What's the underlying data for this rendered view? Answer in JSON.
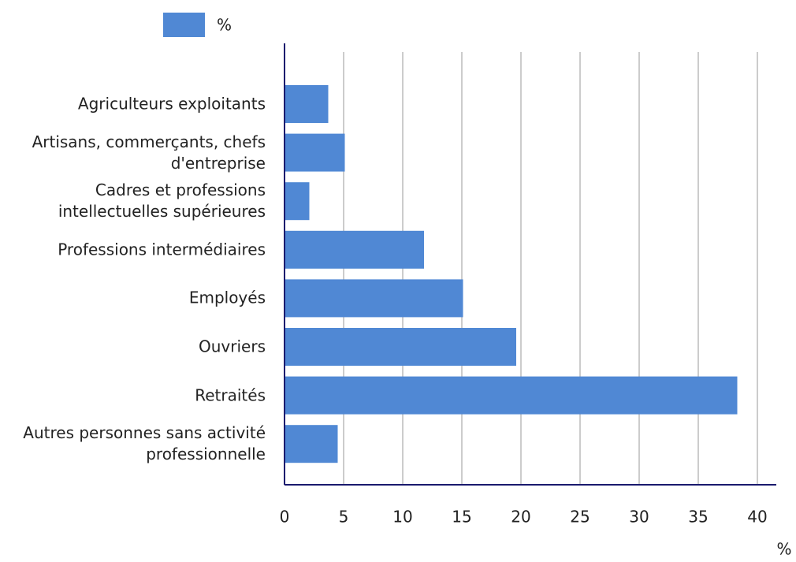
{
  "chart_data": {
    "type": "bar",
    "orientation": "horizontal",
    "categories": [
      "Agriculteurs exploitants",
      "Artisans, commerçants, chefs d'entreprise",
      "Cadres et professions intellectuelles supérieures",
      "Professions intermédiaires",
      "Employés",
      "Ouvriers",
      "Retraités",
      "Autres personnes sans activité professionnelle"
    ],
    "series": [
      {
        "name": "%",
        "color": "#5088d4",
        "values": [
          3.7,
          5.1,
          2.1,
          11.8,
          15.1,
          19.6,
          38.3,
          4.5
        ]
      }
    ],
    "x_label": "%",
    "xlim": [
      0,
      41.6
    ],
    "xticks": [
      0,
      5,
      10,
      15,
      20,
      25,
      30,
      35,
      40
    ],
    "grid": true,
    "legend": "top"
  }
}
